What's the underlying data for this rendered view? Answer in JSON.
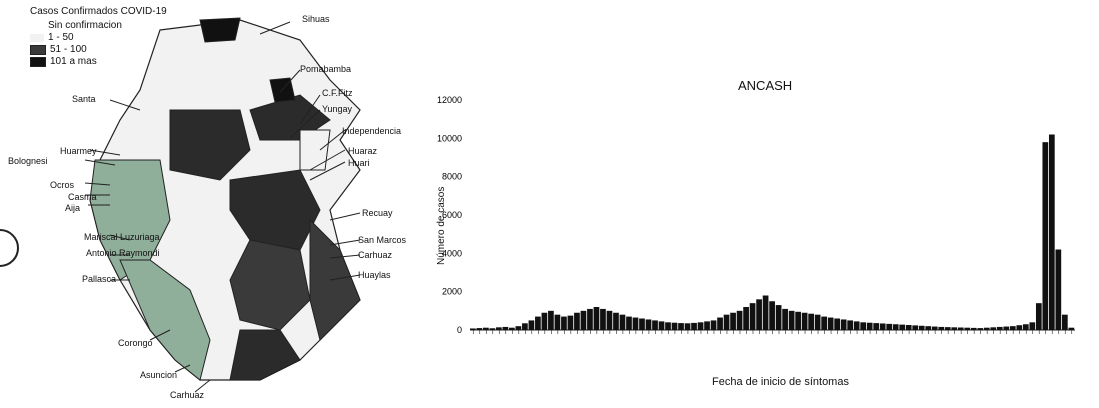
{
  "map": {
    "legend": {
      "title": "Casos Confirmados COVID-19",
      "items": [
        {
          "label": "Sin confirmacion",
          "color": "#ffffff"
        },
        {
          "label": "1 - 50",
          "color": "#f2f2f2"
        },
        {
          "label": "51 - 100",
          "color": "#3a3a3a"
        },
        {
          "label": "101 a mas",
          "color": "#111111"
        }
      ]
    },
    "labels": [
      "Sihuas",
      "Pomabamba",
      "C.F.Fitz",
      "Yungay",
      "Independencia",
      "Huaraz",
      "Huari",
      "Recuay",
      "San Marcos",
      "Carhuaz",
      "Huaylas",
      "Santa",
      "Huarmey",
      "Bolognesi",
      "Ocros",
      "Casma",
      "Aija",
      "Mariscal Luzuriaga",
      "Antonio Raymondi",
      "Pallasca",
      "Corongo",
      "Asuncion",
      "Carhuaz",
      "Ocros",
      "Huarmey",
      "Cotaparaco"
    ],
    "colors": {
      "low": "#f2f2f2",
      "mid": "#8faf9a",
      "dark": "#2b2b2b",
      "outline": "#222222"
    }
  },
  "chart_data": {
    "type": "bar",
    "title": "ANCASH",
    "xlabel": "Fecha de inicio de síntomas",
    "ylabel": "Número de casos",
    "ylim": [
      0,
      12000
    ],
    "yticks": [
      "0",
      "2000",
      "4000",
      "6000",
      "8000",
      "10000",
      "12000"
    ],
    "values": [
      80,
      100,
      120,
      90,
      140,
      160,
      120,
      200,
      350,
      500,
      700,
      900,
      1000,
      800,
      700,
      750,
      900,
      1000,
      1100,
      1200,
      1100,
      1000,
      900,
      800,
      700,
      650,
      600,
      550,
      500,
      450,
      400,
      380,
      360,
      350,
      370,
      400,
      450,
      500,
      650,
      800,
      900,
      1000,
      1200,
      1400,
      1600,
      1800,
      1500,
      1300,
      1100,
      1000,
      950,
      900,
      850,
      800,
      700,
      650,
      600,
      550,
      500,
      450,
      400,
      380,
      360,
      340,
      320,
      300,
      280,
      260,
      240,
      220,
      200,
      180,
      160,
      150,
      140,
      130,
      120,
      110,
      100,
      120,
      140,
      160,
      180,
      200,
      250,
      300,
      400,
      1400,
      9800,
      10200,
      4200,
      800,
      120
    ],
    "x_ticks_count": 93
  }
}
